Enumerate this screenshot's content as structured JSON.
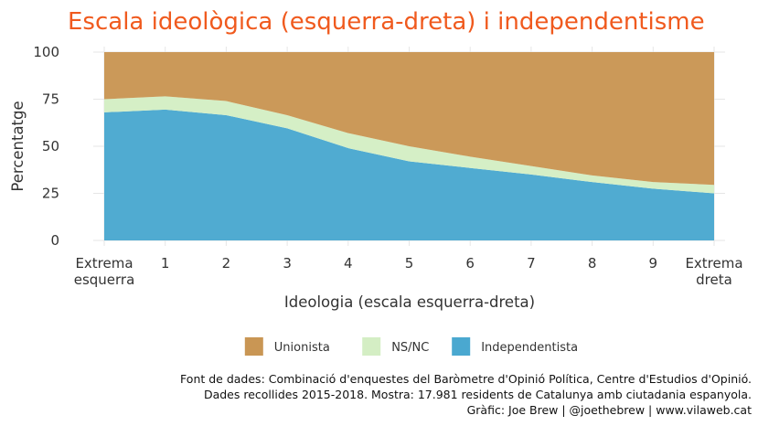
{
  "chart_data": {
    "type": "area",
    "stacked": true,
    "title": "Escala ideològica (esquerra-dreta) i independentisme",
    "xlabel": "Ideologia (escala esquerra-dreta)",
    "ylabel": "Percentatge",
    "x": [
      0,
      1,
      2,
      3,
      4,
      5,
      6,
      7,
      8,
      9,
      10
    ],
    "x_tick_labels": [
      [
        "Extrema",
        "esquerra"
      ],
      [
        "1"
      ],
      [
        "2"
      ],
      [
        "3"
      ],
      [
        "4"
      ],
      [
        "5"
      ],
      [
        "6"
      ],
      [
        "7"
      ],
      [
        "8"
      ],
      [
        "9"
      ],
      [
        "Extrema",
        "dreta"
      ]
    ],
    "y_ticks": [
      0,
      25,
      50,
      75,
      100
    ],
    "y_tick_labels": [
      "0",
      "25",
      "50",
      "75",
      "100"
    ],
    "ylim": [
      0,
      100
    ],
    "grid": true,
    "legend_position": "bottom",
    "series": [
      {
        "name": "Independentista",
        "color": "#4aa8d0",
        "values": [
          68,
          69.5,
          66.5,
          59.5,
          49,
          42,
          38.5,
          35,
          31,
          27.5,
          25
        ]
      },
      {
        "name": "NS/NC",
        "color": "#d4eec4",
        "values": [
          7,
          7,
          7.5,
          7,
          8,
          8,
          6,
          4.5,
          3.5,
          3.5,
          4.5
        ]
      },
      {
        "name": "Unionista",
        "color": "#c99654",
        "values": [
          25,
          23.5,
          26,
          33.5,
          43,
          50,
          55.5,
          60.5,
          65.5,
          69,
          70.5
        ]
      }
    ],
    "legend_order": [
      "Unionista",
      "NS/NC",
      "Independentista"
    ],
    "caption": [
      "Font de dades: Combinació d'enquestes del Baròmetre d'Opinió Política, Centre d'Estudios d'Opinió.",
      "Dades recollides 2015-2018. Mostra: 17.981 residents de Catalunya amb ciutadania espanyola.",
      "Gràfic: Joe Brew | @joethebrew | www.vilaweb.cat"
    ]
  }
}
